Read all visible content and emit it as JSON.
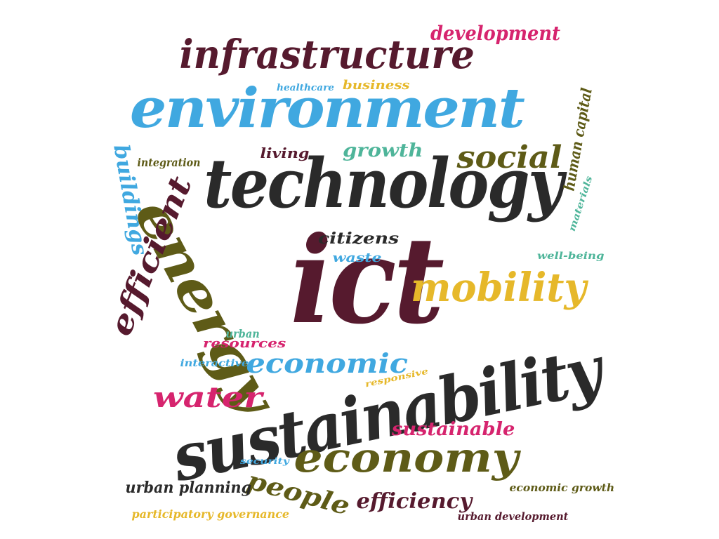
{
  "palette": {
    "maroon": "#561a2e",
    "sky": "#40a8e0",
    "charcoal": "#2a2a2a",
    "olive": "#5e5b17",
    "gold": "#e6b82a",
    "pink": "#d6246e",
    "teal": "#4fb59a"
  },
  "words": [
    {
      "key": "ict",
      "text": "ict",
      "color": "maroon"
    },
    {
      "key": "sustainability",
      "text": "sustainability",
      "color": "charcoal"
    },
    {
      "key": "technology",
      "text": "technology",
      "color": "charcoal"
    },
    {
      "key": "environment",
      "text": "environment",
      "color": "sky"
    },
    {
      "key": "infrastructure",
      "text": "infrastructure",
      "color": "maroon"
    },
    {
      "key": "energy",
      "text": "energy",
      "color": "olive"
    },
    {
      "key": "economy",
      "text": "economy",
      "color": "olive"
    },
    {
      "key": "mobility",
      "text": "mobility",
      "color": "gold"
    },
    {
      "key": "efficient",
      "text": "efficient",
      "color": "maroon"
    },
    {
      "key": "social",
      "text": "social",
      "color": "olive"
    },
    {
      "key": "economic",
      "text": "economic",
      "color": "sky"
    },
    {
      "key": "water",
      "text": "water",
      "color": "pink"
    },
    {
      "key": "development",
      "text": "development",
      "color": "pink"
    },
    {
      "key": "people",
      "text": "people",
      "color": "olive"
    },
    {
      "key": "efficiency",
      "text": "efficiency",
      "color": "maroon"
    },
    {
      "key": "buildings",
      "text": "buildings",
      "color": "sky"
    },
    {
      "key": "sustainable",
      "text": "sustainable",
      "color": "pink"
    },
    {
      "key": "human-capital",
      "text": "human capital",
      "color": "olive"
    },
    {
      "key": "growth",
      "text": "growth",
      "color": "teal"
    },
    {
      "key": "citizens",
      "text": "citizens",
      "color": "charcoal"
    },
    {
      "key": "urban-planning",
      "text": "urban planning",
      "color": "charcoal"
    },
    {
      "key": "business",
      "text": "business",
      "color": "gold"
    },
    {
      "key": "resources",
      "text": "resources",
      "color": "pink"
    },
    {
      "key": "living",
      "text": "living",
      "color": "maroon"
    },
    {
      "key": "waste",
      "text": "waste",
      "color": "sky"
    },
    {
      "key": "integration",
      "text": "integration",
      "color": "olive"
    },
    {
      "key": "urban",
      "text": "urban",
      "color": "teal"
    },
    {
      "key": "interactive",
      "text": "interactive",
      "color": "sky"
    },
    {
      "key": "participatory-governance",
      "text": "participatory governance",
      "color": "gold"
    },
    {
      "key": "urban-development",
      "text": "urban development",
      "color": "maroon"
    },
    {
      "key": "economic-growth",
      "text": "economic growth",
      "color": "olive"
    },
    {
      "key": "healthcare",
      "text": "healthcare",
      "color": "sky"
    },
    {
      "key": "well-being",
      "text": "well-being",
      "color": "teal"
    },
    {
      "key": "materials",
      "text": "materials",
      "color": "teal"
    },
    {
      "key": "responsive",
      "text": "responsive",
      "color": "gold"
    },
    {
      "key": "security",
      "text": "security",
      "color": "sky"
    }
  ]
}
